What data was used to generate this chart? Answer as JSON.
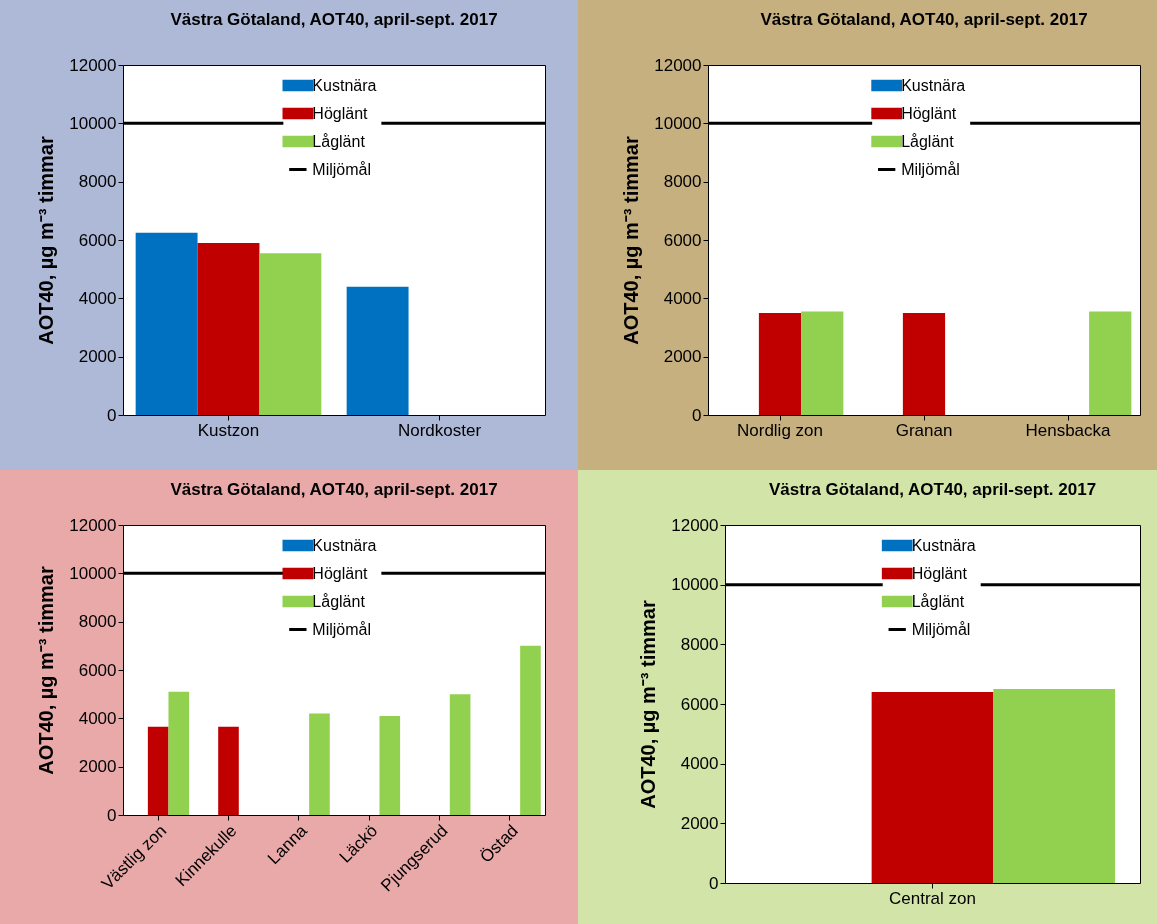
{
  "chart_data": [
    {
      "type": "bar",
      "title": "Västra Götaland, AOT40, april-sept. 2017",
      "ylabel": "AOT40, µg m⁻³ timmar",
      "categories": [
        "Kustzon",
        "Nordkoster"
      ],
      "series": [
        {
          "name": "Kustnära",
          "color": "#0070c0",
          "values": [
            6250,
            4400
          ]
        },
        {
          "name": "Höglänt",
          "color": "#c00000",
          "values": [
            5900,
            null
          ]
        },
        {
          "name": "Låglänt",
          "color": "#92d050",
          "values": [
            5550,
            null
          ]
        }
      ],
      "ylim": [
        0,
        12000
      ],
      "yticks": [
        0,
        2000,
        4000,
        6000,
        8000,
        10000,
        12000
      ],
      "ref_lines": [
        {
          "axis": "y",
          "value": 10000,
          "label": "Miljömål",
          "color": "#000000"
        }
      ],
      "legend": "top"
    },
    {
      "type": "bar",
      "title": "Västra Götaland, AOT40, april-sept. 2017",
      "ylabel": "AOT40, µg m⁻³ timmar",
      "categories": [
        "Nordlig zon",
        "Granan",
        "Hensbacka"
      ],
      "series": [
        {
          "name": "Kustnära",
          "color": "#0070c0",
          "values": [
            null,
            null,
            null
          ]
        },
        {
          "name": "Höglänt",
          "color": "#c00000",
          "values": [
            3500,
            3500,
            null
          ]
        },
        {
          "name": "Låglänt",
          "color": "#92d050",
          "values": [
            3550,
            null,
            3550
          ]
        }
      ],
      "ylim": [
        0,
        12000
      ],
      "yticks": [
        0,
        2000,
        4000,
        6000,
        8000,
        10000,
        12000
      ],
      "ref_lines": [
        {
          "axis": "y",
          "value": 10000,
          "label": "Miljömål",
          "color": "#000000"
        }
      ],
      "legend": "top"
    },
    {
      "type": "bar",
      "title": "Västra Götaland, AOT40, april-sept. 2017",
      "ylabel": "AOT40, µg m⁻³ timmar",
      "categories": [
        "Västlig zon",
        "Kinnekulle",
        "Lanna",
        "Läckö",
        "Pjungserud",
        "Östad"
      ],
      "series": [
        {
          "name": "Kustnära",
          "color": "#0070c0",
          "values": [
            null,
            null,
            null,
            null,
            null,
            null
          ]
        },
        {
          "name": "Höglänt",
          "color": "#c00000",
          "values": [
            3650,
            3650,
            null,
            null,
            null,
            null
          ]
        },
        {
          "name": "Låglänt",
          "color": "#92d050",
          "values": [
            5100,
            null,
            4200,
            4100,
            5000,
            7000
          ]
        }
      ],
      "ylim": [
        0,
        12000
      ],
      "yticks": [
        0,
        2000,
        4000,
        6000,
        8000,
        10000,
        12000
      ],
      "ref_lines": [
        {
          "axis": "y",
          "value": 10000,
          "label": "Miljömål",
          "color": "#000000"
        }
      ],
      "legend": "top"
    },
    {
      "type": "bar",
      "title": "Västra Götaland, AOT40, april-sept. 2017",
      "ylabel": "AOT40, µg m⁻³ timmar",
      "categories": [
        "Central zon"
      ],
      "series": [
        {
          "name": "Kustnära",
          "color": "#0070c0",
          "values": [
            null
          ]
        },
        {
          "name": "Höglänt",
          "color": "#c00000",
          "values": [
            6400
          ]
        },
        {
          "name": "Låglänt",
          "color": "#92d050",
          "values": [
            6500
          ]
        }
      ],
      "ylim": [
        0,
        12000
      ],
      "yticks": [
        0,
        2000,
        4000,
        6000,
        8000,
        10000,
        12000
      ],
      "ref_lines": [
        {
          "axis": "y",
          "value": 10000,
          "label": "Miljömål",
          "color": "#000000"
        }
      ],
      "legend": "top"
    }
  ]
}
